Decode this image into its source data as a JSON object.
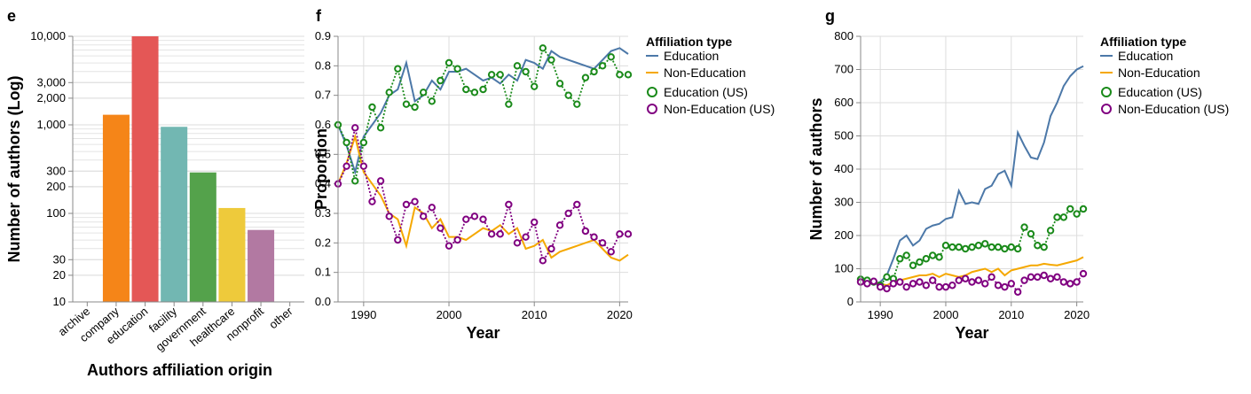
{
  "chart_data": [
    {
      "type": "bar",
      "label": "e",
      "log_y": true,
      "grid": true,
      "y_label": "Number of authors (Log)",
      "x_label": "Authors affiliation origin",
      "categories": [
        "archive",
        "company",
        "education",
        "facility",
        "government",
        "healthcare",
        "nonprofit",
        "other"
      ],
      "values": [
        null,
        1300,
        10000,
        950,
        290,
        115,
        65,
        null
      ],
      "colors": [
        "#4c78a8",
        "#f58518",
        "#e45756",
        "#72b7b2",
        "#54a24b",
        "#eeca3b",
        "#b279a2",
        "#ff9da6"
      ],
      "ylim": [
        10,
        10000
      ],
      "yticks": [
        10,
        20,
        30,
        100,
        200,
        300,
        {
          "value": 1000,
          "label": "1,000"
        },
        {
          "value": 2000,
          "label": "2,000"
        },
        {
          "value": 3000,
          "label": "3,000"
        },
        {
          "value": 10000,
          "label": "10,000"
        }
      ]
    },
    {
      "type": "line",
      "label": "f",
      "grid": true,
      "y_label": "Proportion",
      "x_label": "Year",
      "legend_title": "Affiliation type",
      "x": [
        1987,
        1988,
        1989,
        1990,
        1991,
        1992,
        1993,
        1994,
        1995,
        1996,
        1997,
        1998,
        1999,
        2000,
        2001,
        2002,
        2003,
        2004,
        2005,
        2006,
        2007,
        2008,
        2009,
        2010,
        2011,
        2012,
        2013,
        2014,
        2015,
        2016,
        2017,
        2018,
        2019,
        2020,
        2021
      ],
      "xlim": [
        1987,
        2021
      ],
      "xticks": [
        1990,
        2000,
        2010,
        2020
      ],
      "ylim": [
        0,
        0.9
      ],
      "yticks": [
        {
          "value": 0,
          "label": "0.0"
        },
        0.1,
        0.2,
        0.3,
        0.4,
        0.5,
        0.6,
        0.7,
        0.8,
        0.9
      ],
      "series": [
        {
          "name": "Education",
          "color": "#4c78a8",
          "mark": "line",
          "values": [
            0.6,
            0.53,
            0.44,
            0.56,
            0.6,
            0.64,
            0.7,
            0.72,
            0.81,
            0.68,
            0.7,
            0.75,
            0.72,
            0.78,
            0.78,
            0.79,
            0.77,
            0.75,
            0.76,
            0.74,
            0.77,
            0.75,
            0.82,
            0.81,
            0.79,
            0.85,
            0.83,
            0.82,
            0.81,
            0.8,
            0.79,
            0.82,
            0.85,
            0.86,
            0.84
          ]
        },
        {
          "name": "Non-Education",
          "color": "#f5a800",
          "mark": "line",
          "values": [
            0.4,
            0.47,
            0.56,
            0.44,
            0.4,
            0.36,
            0.3,
            0.28,
            0.19,
            0.32,
            0.3,
            0.25,
            0.28,
            0.22,
            0.22,
            0.21,
            0.23,
            0.25,
            0.24,
            0.26,
            0.23,
            0.25,
            0.18,
            0.19,
            0.21,
            0.15,
            0.17,
            0.18,
            0.19,
            0.2,
            0.21,
            0.18,
            0.15,
            0.14,
            0.16
          ]
        },
        {
          "name": "Education (US)",
          "color": "#1a8a1a",
          "mark": "points",
          "values": [
            0.6,
            0.54,
            0.41,
            0.54,
            0.66,
            0.59,
            0.71,
            0.79,
            0.67,
            0.66,
            0.71,
            0.68,
            0.75,
            0.81,
            0.79,
            0.72,
            0.71,
            0.72,
            0.77,
            0.77,
            0.67,
            0.8,
            0.78,
            0.73,
            0.86,
            0.82,
            0.74,
            0.7,
            0.67,
            0.76,
            0.78,
            0.8,
            0.83,
            0.77,
            0.77
          ]
        },
        {
          "name": "Non-Education (US)",
          "color": "#800080",
          "mark": "points",
          "values": [
            0.4,
            0.46,
            0.59,
            0.46,
            0.34,
            0.41,
            0.29,
            0.21,
            0.33,
            0.34,
            0.29,
            0.32,
            0.25,
            0.19,
            0.21,
            0.28,
            0.29,
            0.28,
            0.23,
            0.23,
            0.33,
            0.2,
            0.22,
            0.27,
            0.14,
            0.18,
            0.26,
            0.3,
            0.33,
            0.24,
            0.22,
            0.2,
            0.17,
            0.23,
            0.23
          ]
        }
      ]
    },
    {
      "type": "line",
      "label": "g",
      "grid": true,
      "y_label": "Number of authors",
      "x_label": "Year",
      "legend_title": "Affiliation type",
      "x": [
        1987,
        1988,
        1989,
        1990,
        1991,
        1992,
        1993,
        1994,
        1995,
        1996,
        1997,
        1998,
        1999,
        2000,
        2001,
        2002,
        2003,
        2004,
        2005,
        2006,
        2007,
        2008,
        2009,
        2010,
        2011,
        2012,
        2013,
        2014,
        2015,
        2016,
        2017,
        2018,
        2019,
        2020,
        2021
      ],
      "xlim": [
        1987,
        2021
      ],
      "xticks": [
        1990,
        2000,
        2010,
        2020
      ],
      "ylim": [
        0,
        800
      ],
      "yticks": [
        0,
        100,
        200,
        300,
        400,
        500,
        600,
        700,
        800
      ],
      "series": [
        {
          "name": "Education",
          "color": "#4c78a8",
          "mark": "line",
          "values": [
            65,
            60,
            55,
            60,
            80,
            130,
            185,
            200,
            170,
            185,
            220,
            230,
            235,
            250,
            255,
            335,
            295,
            300,
            295,
            340,
            350,
            385,
            395,
            350,
            510,
            470,
            435,
            430,
            480,
            560,
            600,
            650,
            680,
            700,
            710
          ]
        },
        {
          "name": "Non-Education",
          "color": "#f5a800",
          "mark": "line",
          "values": [
            55,
            58,
            60,
            55,
            50,
            60,
            65,
            70,
            75,
            80,
            80,
            85,
            75,
            85,
            80,
            75,
            80,
            90,
            95,
            100,
            90,
            100,
            80,
            95,
            100,
            105,
            110,
            110,
            115,
            112,
            110,
            115,
            120,
            125,
            135
          ]
        },
        {
          "name": "Education (US)",
          "color": "#1a8a1a",
          "mark": "points",
          "values": [
            68,
            65,
            60,
            50,
            75,
            70,
            130,
            140,
            110,
            120,
            130,
            140,
            135,
            170,
            165,
            165,
            160,
            165,
            170,
            175,
            165,
            165,
            160,
            165,
            160,
            225,
            205,
            170,
            165,
            215,
            255,
            255,
            280,
            265,
            280
          ]
        },
        {
          "name": "Non-Education (US)",
          "color": "#800080",
          "mark": "points",
          "values": [
            60,
            55,
            62,
            45,
            40,
            55,
            60,
            45,
            55,
            60,
            50,
            65,
            45,
            45,
            50,
            65,
            70,
            60,
            65,
            55,
            75,
            50,
            45,
            55,
            30,
            65,
            75,
            75,
            80,
            70,
            75,
            60,
            55,
            60,
            85
          ]
        }
      ]
    }
  ]
}
